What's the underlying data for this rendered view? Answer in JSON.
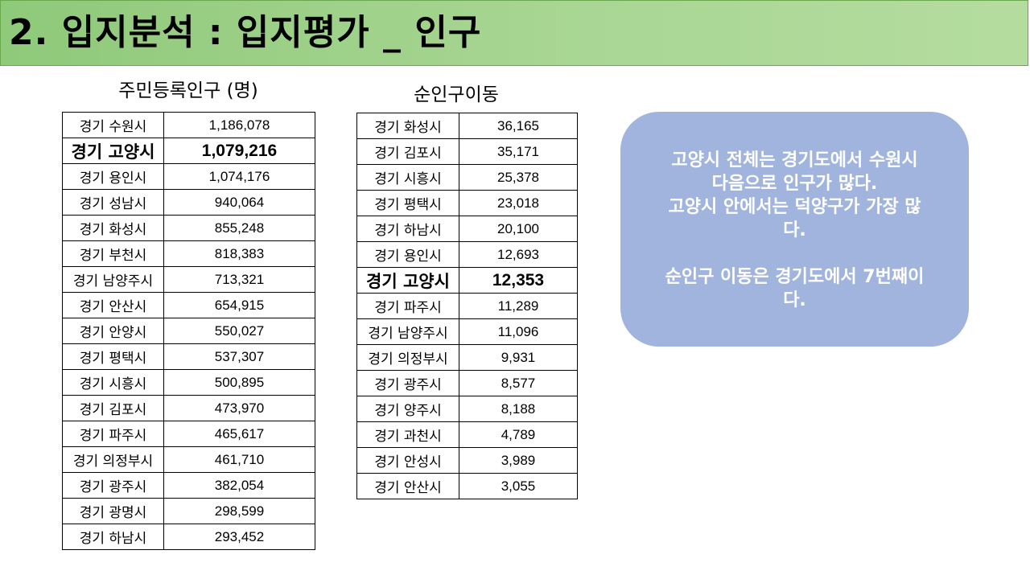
{
  "header": {
    "title": "2. 입지분석 : 입지평가 _ 인구"
  },
  "population_table": {
    "title": "주민등록인구 (명)",
    "rows": [
      {
        "name": "경기 수원시",
        "value": "1,186,078",
        "highlight": false
      },
      {
        "name": "경기 고양시",
        "value": "1,079,216",
        "highlight": true
      },
      {
        "name": "경기 용인시",
        "value": "1,074,176",
        "highlight": false
      },
      {
        "name": "경기 성남시",
        "value": "940,064",
        "highlight": false
      },
      {
        "name": "경기 화성시",
        "value": "855,248",
        "highlight": false
      },
      {
        "name": "경기 부천시",
        "value": "818,383",
        "highlight": false
      },
      {
        "name": "경기 남양주시",
        "value": "713,321",
        "highlight": false
      },
      {
        "name": "경기 안산시",
        "value": "654,915",
        "highlight": false
      },
      {
        "name": "경기 안양시",
        "value": "550,027",
        "highlight": false
      },
      {
        "name": "경기 평택시",
        "value": "537,307",
        "highlight": false
      },
      {
        "name": "경기 시흥시",
        "value": "500,895",
        "highlight": false
      },
      {
        "name": "경기 김포시",
        "value": "473,970",
        "highlight": false
      },
      {
        "name": "경기 파주시",
        "value": "465,617",
        "highlight": false
      },
      {
        "name": "경기 의정부시",
        "value": "461,710",
        "highlight": false
      },
      {
        "name": "경기 광주시",
        "value": "382,054",
        "highlight": false
      },
      {
        "name": "경기 광명시",
        "value": "298,599",
        "highlight": false
      },
      {
        "name": "경기 하남시",
        "value": "293,452",
        "highlight": false
      }
    ]
  },
  "migration_table": {
    "title": "순인구이동",
    "rows": [
      {
        "name": "경기 화성시",
        "value": "36,165",
        "highlight": false
      },
      {
        "name": "경기 김포시",
        "value": "35,171",
        "highlight": false
      },
      {
        "name": "경기 시흥시",
        "value": "25,378",
        "highlight": false
      },
      {
        "name": "경기 평택시",
        "value": "23,018",
        "highlight": false
      },
      {
        "name": "경기 하남시",
        "value": "20,100",
        "highlight": false
      },
      {
        "name": "경기 용인시",
        "value": "12,693",
        "highlight": false
      },
      {
        "name": "경기 고양시",
        "value": "12,353",
        "highlight": true
      },
      {
        "name": "경기 파주시",
        "value": "11,289",
        "highlight": false
      },
      {
        "name": "경기 남양주시",
        "value": "11,096",
        "highlight": false
      },
      {
        "name": "경기 의정부시",
        "value": "9,931",
        "highlight": false
      },
      {
        "name": "경기 광주시",
        "value": "8,577",
        "highlight": false
      },
      {
        "name": "경기 양주시",
        "value": "8,188",
        "highlight": false
      },
      {
        "name": "경기 과천시",
        "value": "4,789",
        "highlight": false
      },
      {
        "name": "경기 안성시",
        "value": "3,989",
        "highlight": false
      },
      {
        "name": "경기 안산시",
        "value": "3,055",
        "highlight": false
      }
    ]
  },
  "note": {
    "line1": "고양시 전체는 경기도에서 수원시",
    "line2": "다음으로 인구가 많다.",
    "line3": "고양시 안에서는 덕양구가 가장 많",
    "line4": "다.",
    "line5": "순인구 이동은 경기도에서 7번째이",
    "line6": "다.",
    "background_color": "#a0b4de"
  }
}
